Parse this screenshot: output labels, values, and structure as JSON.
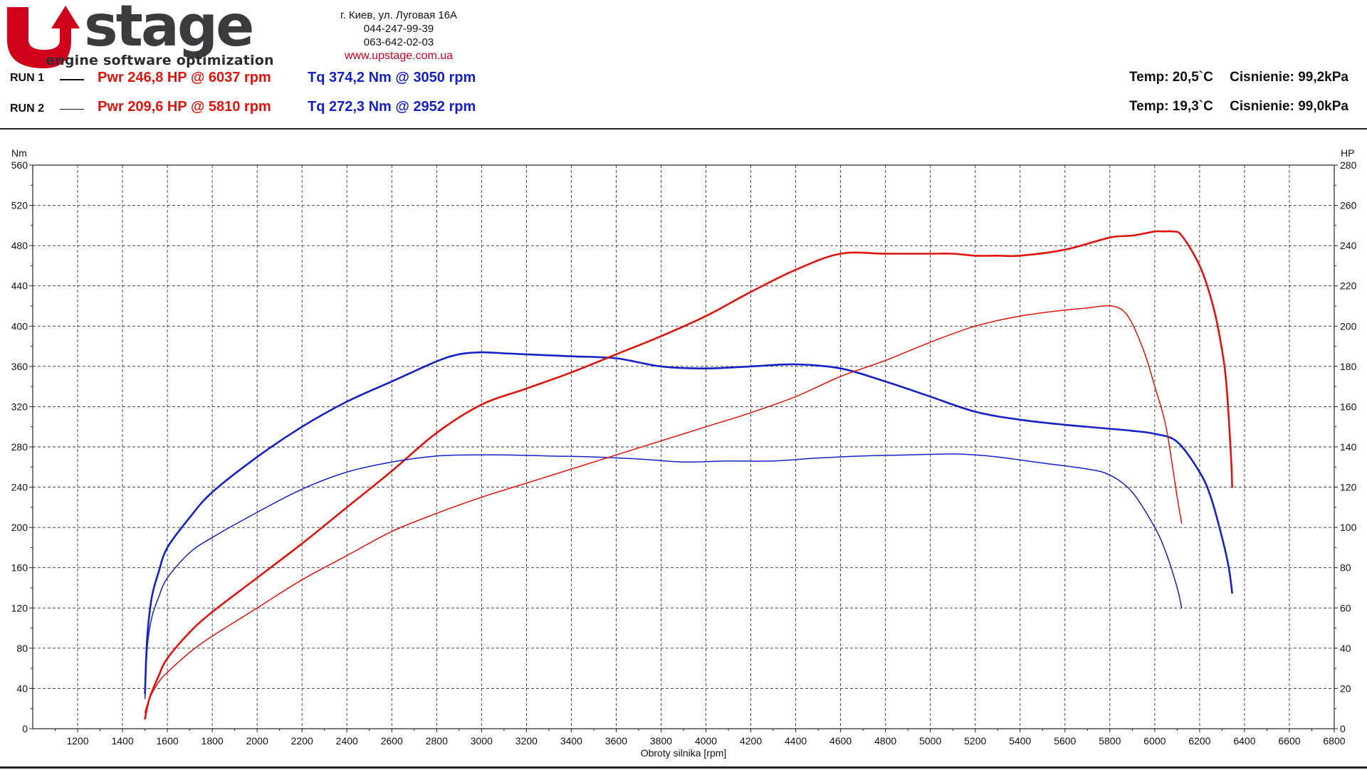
{
  "header": {
    "logo_word": "stage",
    "logo_tagline": "engine software optimization",
    "address": "г. Киев, ул. Луговая 16А",
    "phone1": "044-247-99-39",
    "phone2": "063-642-02-03",
    "website": "www.upstage.com.ua"
  },
  "runs": [
    {
      "label": "RUN 1",
      "pwr": "Pwr  246,8 HP @ 6037 rpm",
      "tq": "Tq 374,2 Nm @ 3050 rpm",
      "temp": "Temp: 20,5`C",
      "pressure": "Cisnienie: 99,2kPa"
    },
    {
      "label": "RUN 2",
      "pwr": "Pwr  209,6 HP @ 5810 rpm",
      "tq": "Tq 272,3 Nm @ 2952 rpm",
      "temp": "Temp: 19,3`C",
      "pressure": "Cisnienie: 99,0kPa"
    }
  ],
  "colors": {
    "power": "#e0140f",
    "torque": "#1521c2",
    "logo_red": "#d0021b"
  },
  "chart_data": {
    "type": "line",
    "xlabel": "Obroty silnika [rpm]",
    "ylabel_left": "Nm",
    "ylabel_right": "HP",
    "xlim": [
      1000,
      6800
    ],
    "ylim_left": [
      0,
      560
    ],
    "ylim_right": [
      0,
      280
    ],
    "x_ticks": [
      1200,
      1400,
      1600,
      1800,
      2000,
      2200,
      2400,
      2600,
      2800,
      3000,
      3200,
      3400,
      3600,
      3800,
      4000,
      4200,
      4400,
      4600,
      4800,
      5000,
      5200,
      5400,
      5600,
      5800,
      6000,
      6200,
      6400,
      6600,
      6800
    ],
    "y_ticks_left": [
      0,
      40,
      80,
      120,
      160,
      200,
      240,
      280,
      320,
      360,
      400,
      440,
      480,
      520,
      560
    ],
    "y_ticks_right": [
      0,
      20,
      40,
      60,
      80,
      100,
      120,
      140,
      160,
      180,
      200,
      220,
      240,
      260,
      280
    ],
    "grid": true,
    "series": [
      {
        "run": "RUN 1",
        "quantity": "torque",
        "axis": "left",
        "unit": "Nm",
        "width": 2.6,
        "x": [
          1500,
          1510,
          1530,
          1560,
          1600,
          1700,
          1800,
          2000,
          2200,
          2400,
          2600,
          2800,
          2900,
          3000,
          3100,
          3200,
          3400,
          3600,
          3800,
          4000,
          4200,
          4400,
          4600,
          4800,
          5000,
          5200,
          5400,
          5600,
          5800,
          5900,
          6000,
          6100,
          6200,
          6250,
          6300,
          6330,
          6345
        ],
        "y": [
          35,
          90,
          130,
          155,
          180,
          210,
          235,
          270,
          300,
          325,
          345,
          365,
          372,
          374,
          373,
          372,
          370,
          368,
          360,
          358,
          360,
          362,
          358,
          345,
          330,
          315,
          307,
          302,
          298,
          296,
          293,
          285,
          255,
          230,
          190,
          160,
          135
        ]
      },
      {
        "run": "RUN 1",
        "quantity": "power",
        "axis": "right",
        "unit": "HP",
        "width": 2.6,
        "x": [
          1500,
          1520,
          1560,
          1600,
          1700,
          1800,
          2000,
          2200,
          2400,
          2600,
          2800,
          3000,
          3200,
          3400,
          3600,
          3800,
          4000,
          4200,
          4400,
          4600,
          4800,
          5000,
          5100,
          5200,
          5300,
          5400,
          5600,
          5800,
          5900,
          6000,
          6037,
          6080,
          6120,
          6200,
          6260,
          6300,
          6320,
          6340,
          6345
        ],
        "y": [
          5,
          15,
          26,
          35,
          48,
          58,
          75,
          92,
          110,
          128,
          147,
          161,
          169,
          177,
          186,
          195,
          205,
          217,
          228,
          236,
          236,
          236,
          236,
          235,
          235,
          235,
          238,
          244,
          245,
          247,
          247,
          247,
          245,
          230,
          210,
          188,
          170,
          135,
          120
        ]
      },
      {
        "run": "RUN 2",
        "quantity": "torque",
        "axis": "left",
        "unit": "Nm",
        "width": 1.5,
        "x": [
          1500,
          1510,
          1530,
          1560,
          1600,
          1700,
          1800,
          2000,
          2200,
          2400,
          2600,
          2800,
          2952,
          3100,
          3300,
          3500,
          3700,
          3900,
          4100,
          4300,
          4500,
          4700,
          4900,
          5100,
          5200,
          5300,
          5500,
          5700,
          5800,
          5900,
          6000,
          6050,
          6100,
          6120
        ],
        "y": [
          30,
          80,
          110,
          130,
          150,
          175,
          190,
          215,
          238,
          255,
          265,
          271,
          272,
          272,
          271,
          270,
          268,
          265,
          266,
          266,
          269,
          271,
          272,
          273,
          272,
          270,
          264,
          258,
          252,
          235,
          200,
          175,
          140,
          120
        ]
      },
      {
        "run": "RUN 2",
        "quantity": "power",
        "axis": "right",
        "unit": "HP",
        "width": 1.5,
        "x": [
          1500,
          1520,
          1560,
          1600,
          1700,
          1800,
          2000,
          2200,
          2400,
          2600,
          2800,
          3000,
          3200,
          3400,
          3600,
          3800,
          4000,
          4200,
          4400,
          4600,
          4800,
          5000,
          5200,
          5400,
          5600,
          5700,
          5810,
          5880,
          5950,
          6000,
          6050,
          6100,
          6120
        ],
        "y": [
          8,
          15,
          23,
          28,
          38,
          46,
          60,
          74,
          86,
          98,
          107,
          115,
          122,
          129,
          136,
          143,
          150,
          157,
          165,
          175,
          183,
          192,
          200,
          205,
          208,
          209,
          210,
          205,
          188,
          170,
          150,
          115,
          102
        ]
      }
    ]
  }
}
